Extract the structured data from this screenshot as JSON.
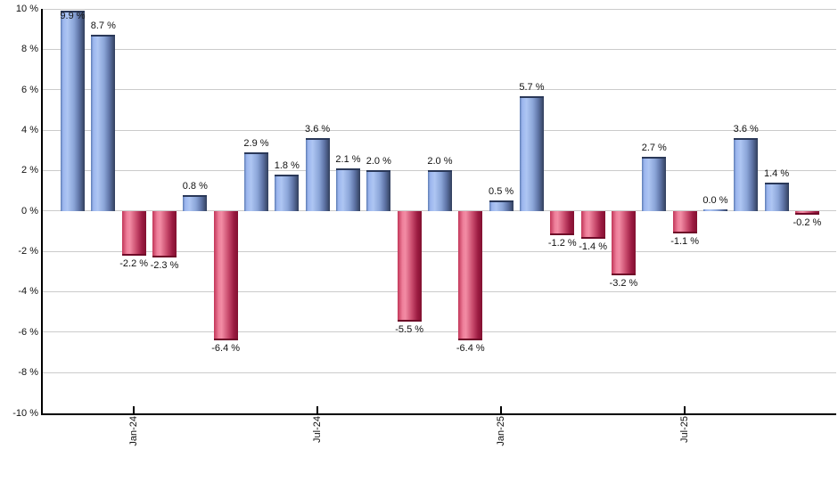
{
  "chart_data": {
    "type": "bar",
    "title": "",
    "xlabel": "",
    "ylabel": "",
    "ylim": [
      -10,
      10
    ],
    "ytick_step": 2,
    "grid": true,
    "legend": null,
    "ytick_labels": [
      "10 %",
      "8 %",
      "6 %",
      "4 %",
      "2 %",
      "0 %",
      "-2 %",
      "-4 %",
      "-6 %",
      "-8 %",
      "-10 %"
    ],
    "ytick_values": [
      10,
      8,
      6,
      4,
      2,
      0,
      -2,
      -4,
      -6,
      -8,
      -10
    ],
    "values": [
      9.9,
      8.7,
      -2.2,
      -2.3,
      0.8,
      -6.4,
      2.9,
      1.8,
      3.6,
      2.1,
      2.0,
      -5.5,
      2.0,
      -6.4,
      0.5,
      5.7,
      -1.2,
      -1.4,
      -3.2,
      2.7,
      -1.1,
      0.0,
      3.6,
      1.4,
      -0.2
    ],
    "bar_labels": [
      "9.9 %",
      "8.7 %",
      "-2.2 %",
      "-2.3 %",
      "0.8 %",
      "-6.4 %",
      "2.9 %",
      "1.8 %",
      "3.6 %",
      "2.1 %",
      "2.0 %",
      "-5.5 %",
      "2.0 %",
      "-6.4 %",
      "0.5 %",
      "5.7 %",
      "-1.2 %",
      "-1.4 %",
      "-3.2 %",
      "2.7 %",
      "-1.1 %",
      "0.0 %",
      "3.6 %",
      "1.4 %",
      "-0.2 %"
    ],
    "x_axis_ticks": [
      {
        "bar_index": 2,
        "label": "Jan-24"
      },
      {
        "bar_index": 8,
        "label": "Jul-24"
      },
      {
        "bar_index": 14,
        "label": "Jan-25"
      },
      {
        "bar_index": 20,
        "label": "Jul-25"
      }
    ]
  },
  "colors": {
    "positive_bar_highlight": "#aec6f3",
    "positive_bar_dark": "#2f3c5c",
    "negative_bar_highlight": "#f28ca4",
    "negative_bar_dark": "#821030",
    "gridline": "#cbcbcb",
    "axis": "#000000",
    "label_text": "#111111",
    "background": "#ffffff"
  }
}
